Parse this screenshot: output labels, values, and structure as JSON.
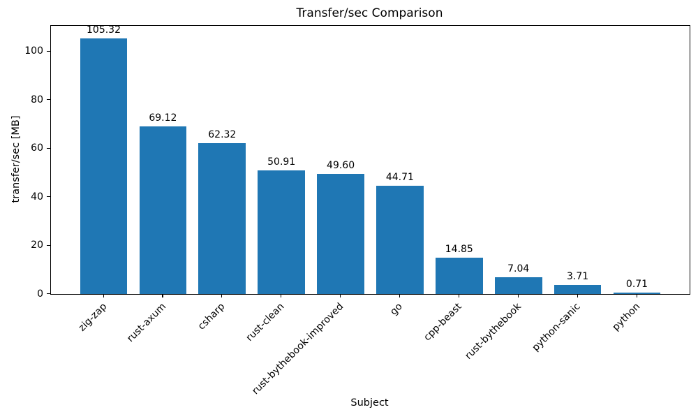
{
  "chart_data": {
    "type": "bar",
    "title": "Transfer/sec Comparison",
    "xlabel": "Subject",
    "ylabel": "transfer/sec [MB]",
    "categories": [
      "zig-zap",
      "rust-axum",
      "csharp",
      "rust-clean",
      "rust-bythebook-improved",
      "go",
      "cpp-beast",
      "rust-bythebook",
      "python-sanic",
      "python"
    ],
    "values": [
      105.32,
      69.12,
      62.32,
      50.91,
      49.6,
      44.71,
      14.85,
      7.04,
      3.71,
      0.71
    ],
    "value_labels": [
      "105.32",
      "69.12",
      "62.32",
      "50.91",
      "49.60",
      "44.71",
      "14.85",
      "7.04",
      "3.71",
      "0.71"
    ],
    "yticks": [
      0,
      20,
      40,
      60,
      80,
      100
    ],
    "ylim": [
      0,
      110.6
    ],
    "bar_color": "#1f77b4",
    "bar_width_fraction": 0.8,
    "grid": false,
    "legend_position": "none",
    "x_tick_rotation_deg": 45
  }
}
